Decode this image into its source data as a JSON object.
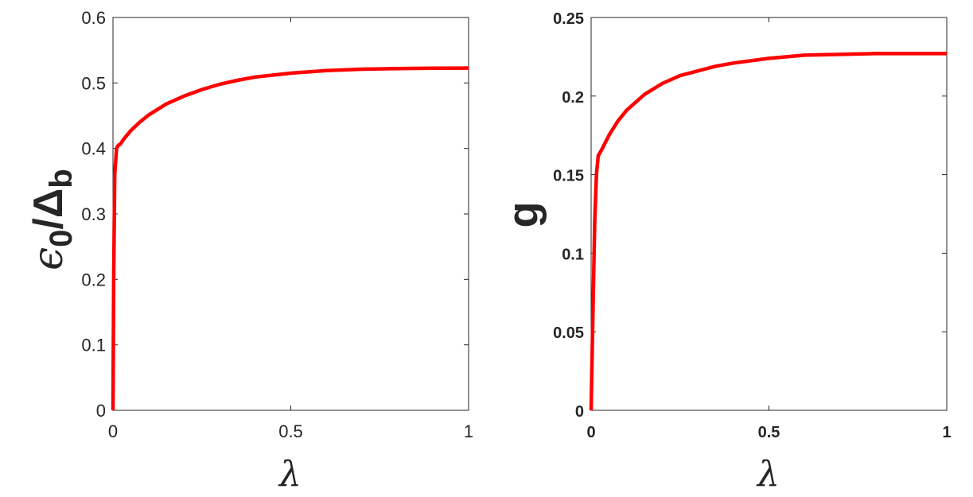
{
  "chart_data": [
    {
      "type": "line",
      "xlabel": "λ",
      "ylabel": {
        "main": "ϵ",
        "sub1": "0",
        "slash": "/Δ",
        "sub2": "b"
      },
      "xlim": [
        0,
        1
      ],
      "ylim": [
        0,
        0.6
      ],
      "xticks": [
        "0",
        "0.5",
        "1"
      ],
      "yticks": [
        "0",
        "0.1",
        "0.2",
        "0.3",
        "0.4",
        "0.5",
        "0.6"
      ],
      "grid": false,
      "series": [
        {
          "color": "#ff0000",
          "x": [
            0,
            0.002,
            0.005,
            0.01,
            0.015,
            0.02,
            0.03,
            0.05,
            0.075,
            0.1,
            0.15,
            0.2,
            0.25,
            0.3,
            0.35,
            0.4,
            0.5,
            0.6,
            0.7,
            0.8,
            0.9,
            1.0
          ],
          "y": [
            0,
            0.2,
            0.36,
            0.4,
            0.405,
            0.406,
            0.414,
            0.427,
            0.44,
            0.451,
            0.468,
            0.48,
            0.49,
            0.498,
            0.504,
            0.509,
            0.515,
            0.519,
            0.521,
            0.522,
            0.5225,
            0.5227
          ]
        }
      ]
    },
    {
      "type": "line",
      "xlabel": "λ",
      "ylabel": "g",
      "xlim": [
        0,
        1
      ],
      "ylim": [
        0,
        0.25
      ],
      "xticks": [
        "0",
        "0.5",
        "1"
      ],
      "yticks": [
        "0",
        "0.05",
        "0.1",
        "0.15",
        "0.2",
        "0.25"
      ],
      "grid": false,
      "series": [
        {
          "color": "#ff0000",
          "x": [
            0,
            0.005,
            0.01,
            0.015,
            0.02,
            0.03,
            0.05,
            0.075,
            0.1,
            0.15,
            0.2,
            0.25,
            0.3,
            0.35,
            0.4,
            0.5,
            0.6,
            0.7,
            0.8,
            0.9,
            1.0
          ],
          "y": [
            0,
            0.06,
            0.12,
            0.15,
            0.162,
            0.166,
            0.175,
            0.184,
            0.191,
            0.201,
            0.208,
            0.213,
            0.216,
            0.219,
            0.221,
            0.224,
            0.226,
            0.2265,
            0.227,
            0.227,
            0.227
          ]
        }
      ]
    }
  ]
}
